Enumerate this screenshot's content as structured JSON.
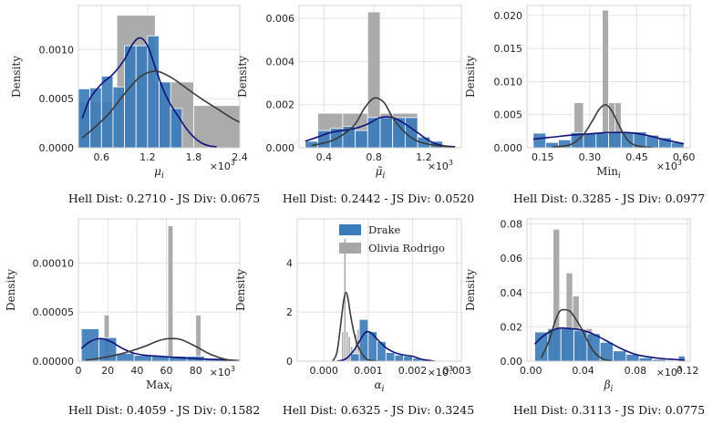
{
  "series_names": [
    "Drake",
    "Olivia Rodrigo"
  ],
  "colors": {
    "drake": "#3a7ab8",
    "olivia": "#a6a6a6",
    "drake_kde": "#10127a",
    "olivia_kde": "#3a3a3a",
    "grid": "#e3e3e3"
  },
  "chart_data": [
    {
      "type": "bar",
      "title": "",
      "xlabel": "μ",
      "xsub": "i",
      "ylabel": "Density",
      "sci": "×10",
      "sci_exp": "3",
      "xlim": [
        0.3,
        2.4
      ],
      "ylim": [
        0,
        0.00145
      ],
      "xticks": [
        0.6,
        1.2,
        1.8,
        2.4
      ],
      "xtick_labels": [
        "0.6",
        "1.2",
        "1.8",
        "2.4"
      ],
      "yticks": [
        0,
        0.0005,
        0.001
      ],
      "ytick_labels": [
        "0.0000",
        "0.0005",
        "0.0010"
      ],
      "series": [
        {
          "name": "Olivia Rodrigo",
          "edges": [
            0.3,
            0.8,
            1.3,
            1.8,
            2.4
          ],
          "values": [
            0.00047,
            0.00135,
            0.00067,
            0.00043
          ]
        },
        {
          "name": "Drake",
          "edges": [
            0.3,
            0.45,
            0.6,
            0.75,
            0.9,
            1.05,
            1.2,
            1.35,
            1.5,
            1.65
          ],
          "values": [
            0.0006,
            0.00061,
            0.00073,
            0.00062,
            0.00104,
            0.00104,
            0.00114,
            0.00067,
            0.0004
          ]
        }
      ],
      "kde": [
        {
          "name": "Drake",
          "x": [
            0.35,
            0.45,
            0.6,
            0.75,
            0.9,
            1.0,
            1.1,
            1.2,
            1.3,
            1.4,
            1.5,
            1.6,
            1.7,
            1.8,
            1.9,
            2.0,
            2.1
          ],
          "y": [
            0.0003,
            0.0005,
            0.00065,
            0.00075,
            0.0009,
            0.00105,
            0.00112,
            0.00104,
            0.00082,
            0.0006,
            0.00044,
            0.00032,
            0.0002,
            0.00011,
            5e-05,
            2e-05,
            1e-05
          ]
        },
        {
          "name": "Olivia Rodrigo",
          "x": [
            0.35,
            0.5,
            0.7,
            0.9,
            1.1,
            1.3,
            1.5,
            1.7,
            1.9,
            2.1,
            2.3,
            2.4
          ],
          "y": [
            0.0001,
            0.0002,
            0.00035,
            0.00055,
            0.00072,
            0.00078,
            0.00072,
            0.00061,
            0.0005,
            0.0004,
            0.0003,
            0.00026
          ]
        }
      ],
      "caption": "Hell Dist: 0.2710 - JS Div: 0.0675"
    },
    {
      "type": "bar",
      "title": "",
      "xlabel": "μ̃",
      "xsub": "i",
      "ylabel": "Density",
      "sci": "×10",
      "sci_exp": "3",
      "xlim": [
        0.2,
        1.5
      ],
      "ylim": [
        0,
        0.0066
      ],
      "xticks": [
        0.4,
        0.8,
        1.2
      ],
      "xtick_labels": [
        "0.4",
        "0.8",
        "1.2"
      ],
      "yticks": [
        0,
        0.002,
        0.004,
        0.006
      ],
      "ytick_labels": [
        "0.000",
        "0.002",
        "0.004",
        "0.006"
      ],
      "series": [
        {
          "name": "Olivia Rodrigo",
          "edges": [
            0.35,
            0.55,
            0.75,
            0.85,
            0.95,
            1.15
          ],
          "values": [
            0.0016,
            0.0016,
            0.0063,
            0.0016,
            0.0016
          ]
        },
        {
          "name": "Drake",
          "edges": [
            0.25,
            0.35,
            0.45,
            0.55,
            0.65,
            0.75,
            0.85,
            0.95,
            1.05,
            1.15,
            1.25,
            1.35
          ],
          "values": [
            0.0003,
            0.0008,
            0.0009,
            0.001,
            0.0008,
            0.0014,
            0.0014,
            0.0014,
            0.0014,
            0.0005,
            0.0003
          ]
        }
      ],
      "kde": [
        {
          "name": "Drake",
          "x": [
            0.25,
            0.35,
            0.45,
            0.55,
            0.65,
            0.75,
            0.85,
            0.95,
            1.05,
            1.15,
            1.25,
            1.35,
            1.45
          ],
          "y": [
            0.0003,
            0.0005,
            0.0007,
            0.0008,
            0.0009,
            0.0011,
            0.0014,
            0.0014,
            0.0011,
            0.0007,
            0.0003,
            0.0001,
            5e-05
          ]
        },
        {
          "name": "Olivia Rodrigo",
          "x": [
            0.3,
            0.45,
            0.55,
            0.65,
            0.72,
            0.8,
            0.88,
            0.95,
            1.05,
            1.15,
            1.3,
            1.45
          ],
          "y": [
            0.0001,
            0.0003,
            0.0006,
            0.0011,
            0.0018,
            0.0023,
            0.0021,
            0.0014,
            0.0007,
            0.0003,
            0.0001,
            2e-05
          ]
        }
      ],
      "caption": "Hell Dist: 0.2442 - JS Div: 0.0520"
    },
    {
      "type": "bar",
      "title": "",
      "xlabel": "Min",
      "xsub": "i",
      "ylabel": "Density",
      "sci": "×10",
      "sci_exp": "3",
      "xlim": [
        0.1,
        0.62
      ],
      "ylim": [
        0,
        0.0215
      ],
      "xticks": [
        0.15,
        0.3,
        0.45,
        0.6
      ],
      "xtick_labels": [
        "0.15",
        "0.30",
        "0.45",
        "0.60"
      ],
      "yticks": [
        0,
        0.005,
        0.01,
        0.015,
        0.02
      ],
      "ytick_labels": [
        "0.000",
        "0.005",
        "0.010",
        "0.015",
        "0.020"
      ],
      "series": [
        {
          "name": "Olivia Rodrigo",
          "edges": [
            0.25,
            0.28,
            0.31,
            0.34,
            0.36,
            0.38,
            0.4
          ],
          "values": [
            0.0068,
            0.0022,
            0.0022,
            0.0208,
            0.0068,
            0.0068
          ]
        },
        {
          "name": "Drake",
          "edges": [
            0.12,
            0.16,
            0.2,
            0.24,
            0.28,
            0.32,
            0.36,
            0.4,
            0.44,
            0.48,
            0.52,
            0.56,
            0.6
          ],
          "values": [
            0.0022,
            0.0008,
            0.0012,
            0.0023,
            0.0022,
            0.0022,
            0.0024,
            0.0024,
            0.0024,
            0.0019,
            0.0015,
            0.0008
          ]
        }
      ],
      "kde": [
        {
          "name": "Drake",
          "x": [
            0.12,
            0.18,
            0.24,
            0.3,
            0.36,
            0.42,
            0.48,
            0.54,
            0.6
          ],
          "y": [
            0.0013,
            0.0016,
            0.0019,
            0.0021,
            0.0023,
            0.0023,
            0.0019,
            0.0012,
            0.0006
          ]
        },
        {
          "name": "Olivia Rodrigo",
          "x": [
            0.18,
            0.24,
            0.28,
            0.31,
            0.33,
            0.35,
            0.37,
            0.39,
            0.42,
            0.45,
            0.5
          ],
          "y": [
            0.0001,
            0.0005,
            0.002,
            0.0042,
            0.0058,
            0.0065,
            0.0056,
            0.0037,
            0.0012,
            0.0003,
            3e-05
          ]
        }
      ],
      "caption": "Hell Dist: 0.3285 - JS Div: 0.0977"
    },
    {
      "type": "bar",
      "title": "",
      "xlabel": "Max",
      "xsub": "i",
      "ylabel": "Density",
      "sci": "×10",
      "sci_exp": "3",
      "xlim": [
        0,
        110
      ],
      "ylim": [
        0,
        0.000145
      ],
      "xticks": [
        0,
        20,
        40,
        60,
        80
      ],
      "xtick_labels": [
        "0",
        "20",
        "40",
        "60",
        "80"
      ],
      "yticks": [
        0,
        5e-05,
        0.0001
      ],
      "ytick_labels": [
        "0.00000",
        "0.00005",
        "0.00010"
      ],
      "series": [
        {
          "name": "Olivia Rodrigo",
          "edges": [
            17.5,
            21,
            61,
            64.5,
            80,
            83.5
          ],
          "values": [
            4.7e-05,
            0,
            0.000138,
            0,
            4.7e-05
          ]
        },
        {
          "name": "Drake",
          "edges": [
            2,
            14,
            26,
            38,
            50,
            62,
            74,
            86,
            98,
            110
          ],
          "values": [
            3.3e-05,
            2.4e-05,
            8e-06,
            6e-06,
            5e-06,
            5e-06,
            5e-06,
            3e-06,
            2e-06
          ]
        }
      ],
      "kde": [
        {
          "name": "Drake",
          "x": [
            2,
            8,
            15,
            22,
            30,
            38,
            46,
            55,
            65,
            75,
            85,
            95,
            105
          ],
          "y": [
            1.3e-05,
            2e-05,
            2.3e-05,
            2e-05,
            1.3e-05,
            8e-06,
            6e-06,
            5e-06,
            4e-06,
            3e-06,
            2.2e-06,
            1.5e-06,
            1e-06
          ]
        },
        {
          "name": "Olivia Rodrigo",
          "x": [
            5,
            15,
            25,
            35,
            45,
            55,
            62,
            70,
            80,
            90,
            100,
            108
          ],
          "y": [
            1e-06,
            3e-06,
            6e-06,
            1e-05,
            1.5e-05,
            2.1e-05,
            2.3e-05,
            2.2e-05,
            1.5e-05,
            7e-06,
            2e-06,
            5e-07
          ]
        }
      ],
      "caption": "Hell Dist: 0.4059 - JS Div: 0.1582"
    },
    {
      "type": "bar",
      "title": "",
      "xlabel": "α",
      "xsub": "i",
      "ylabel": "Density",
      "sci": "×10",
      "sci_exp": "3",
      "xlim": [
        -0.0006,
        0.0031
      ],
      "ylim": [
        0,
        5.8
      ],
      "xticks": [
        0,
        0.001,
        0.002,
        0.003
      ],
      "xtick_labels": [
        "0.000",
        "0.001",
        "0.002",
        "0.003"
      ],
      "yticks": [
        0,
        2,
        4
      ],
      "ytick_labels": [
        "0",
        "2",
        "4"
      ],
      "series": [
        {
          "name": "Olivia Rodrigo",
          "edges": [
            0.0004,
            0.00045,
            0.0005,
            0.00055,
            0.0006,
            0.00065,
            0.0007,
            0.00075,
            0.0008
          ],
          "values": [
            1.2,
            5.0,
            1.2,
            1.0,
            0.6,
            0.4,
            1.1,
            1.3
          ]
        },
        {
          "name": "Drake",
          "edges": [
            0.0006,
            0.0008,
            0.001,
            0.0012,
            0.0014,
            0.0016,
            0.0018,
            0.002,
            0.0022,
            0.0024
          ],
          "values": [
            0.3,
            1.7,
            1.2,
            0.8,
            0.35,
            0.25,
            0.2,
            0.12,
            0.08
          ]
        }
      ],
      "kde": [
        {
          "name": "Drake",
          "x": [
            0.0003,
            0.0005,
            0.0007,
            0.0009,
            0.001,
            0.0011,
            0.0012,
            0.0014,
            0.0016,
            0.0018,
            0.002,
            0.0022,
            0.0025
          ],
          "y": [
            0,
            0.1,
            0.5,
            1.1,
            1.2,
            1.1,
            0.9,
            0.55,
            0.35,
            0.25,
            0.2,
            0.08,
            0
          ]
        },
        {
          "name": "Olivia Rodrigo",
          "x": [
            0.0002,
            0.0003,
            0.0004,
            0.00045,
            0.0005,
            0.00055,
            0.0006,
            0.0007,
            0.0008,
            0.0009,
            0.001,
            0.0012
          ],
          "y": [
            0,
            0.4,
            1.8,
            2.5,
            2.8,
            2.5,
            1.9,
            1.0,
            0.5,
            0.2,
            0.05,
            0
          ]
        }
      ],
      "caption": "Hell Dist: 0.6325 - JS Div: 0.3245",
      "legend": "top-center"
    },
    {
      "type": "bar",
      "title": "",
      "xlabel": "β",
      "xsub": "i",
      "ylabel": "Density",
      "sci": "×10",
      "sci_exp": "3",
      "xlim": [
        -0.003,
        0.122
      ],
      "ylim": [
        0,
        0.083
      ],
      "xticks": [
        0,
        0.04,
        0.08,
        0.12
      ],
      "xtick_labels": [
        "0.00",
        "0.04",
        "0.08",
        "0.12"
      ],
      "yticks": [
        0,
        0.02,
        0.04,
        0.06,
        0.08
      ],
      "ytick_labels": [
        "0.00",
        "0.02",
        "0.04",
        "0.06",
        "0.08"
      ],
      "series": [
        {
          "name": "Olivia Rodrigo",
          "edges": [
            0.012,
            0.017,
            0.022,
            0.027,
            0.032,
            0.037,
            0.042,
            0.047
          ],
          "values": [
            0.0152,
            0.077,
            0.0185,
            0.0515,
            0.038,
            0.015,
            0.019
          ]
        },
        {
          "name": "Drake",
          "edges": [
            0.003,
            0.013,
            0.023,
            0.033,
            0.043,
            0.053,
            0.063,
            0.073,
            0.083,
            0.093,
            0.103,
            0.113,
            0.118
          ],
          "values": [
            0.017,
            0.019,
            0.019,
            0.018,
            0.016,
            0.011,
            0.006,
            0.004,
            0.002,
            0.001,
            0.0005,
            0.003
          ]
        }
      ],
      "kde": [
        {
          "name": "Drake",
          "x": [
            0.003,
            0.01,
            0.02,
            0.03,
            0.04,
            0.05,
            0.06,
            0.07,
            0.08,
            0.09,
            0.1,
            0.11,
            0.118
          ],
          "y": [
            0.01,
            0.015,
            0.019,
            0.019,
            0.018,
            0.015,
            0.011,
            0.007,
            0.004,
            0.0025,
            0.0015,
            0.001,
            0.0005
          ]
        },
        {
          "name": "Olivia Rodrigo",
          "x": [
            0.008,
            0.014,
            0.018,
            0.022,
            0.026,
            0.03,
            0.034,
            0.038,
            0.042,
            0.046,
            0.05,
            0.056,
            0.062
          ],
          "y": [
            0.002,
            0.012,
            0.022,
            0.029,
            0.03,
            0.029,
            0.025,
            0.02,
            0.014,
            0.008,
            0.004,
            0.001,
            0.0002
          ]
        }
      ],
      "caption": "Hell Dist: 0.3113 - JS Div: 0.0775"
    }
  ]
}
